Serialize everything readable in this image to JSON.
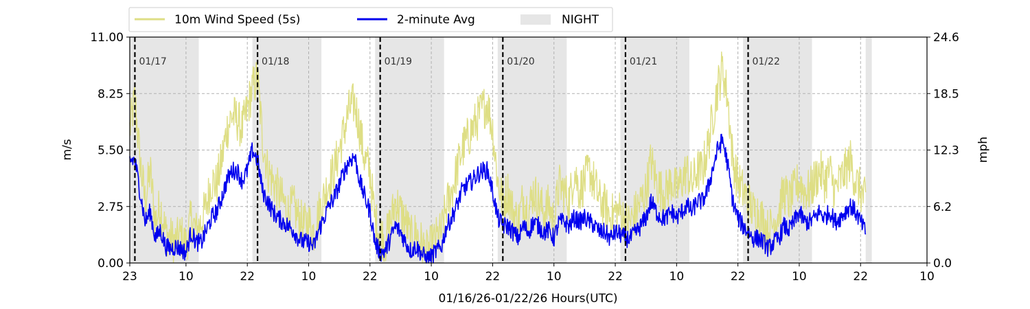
{
  "chart_data": {
    "type": "line",
    "xlabel": "01/16/26-01/22/26  Hours(UTC)",
    "ylabel_left": "m/s",
    "ylabel_right": "mph",
    "ylim": [
      0,
      11
    ],
    "y_ticks": [
      "0.00",
      "2.75",
      "5.50",
      "8.25",
      "11.00"
    ],
    "y_ticks_right": [
      "0.0",
      "6.2",
      "12.3",
      "18.5",
      "24.6"
    ],
    "x_range_hours": [
      0,
      156
    ],
    "x_ticks": [
      {
        "h": 0,
        "label": "23"
      },
      {
        "h": 11,
        "label": "10"
      },
      {
        "h": 23,
        "label": "22"
      },
      {
        "h": 35,
        "label": "10"
      },
      {
        "h": 47,
        "label": "22"
      },
      {
        "h": 59,
        "label": "10"
      },
      {
        "h": 71,
        "label": "22"
      },
      {
        "h": 83,
        "label": "10"
      },
      {
        "h": 95,
        "label": "22"
      },
      {
        "h": 107,
        "label": "10"
      },
      {
        "h": 119,
        "label": "22"
      },
      {
        "h": 131,
        "label": "10"
      },
      {
        "h": 143,
        "label": "22"
      },
      {
        "h": 156,
        "label": "10"
      }
    ],
    "grid": "dashed",
    "legend_position": "top-left, above plot",
    "legend": [
      "10m Wind Speed (5s)",
      "2-minute Avg",
      "NIGHT"
    ],
    "date_markers": [
      {
        "h": 1,
        "label": "01/17"
      },
      {
        "h": 25,
        "label": "01/18"
      },
      {
        "h": 49,
        "label": "01/19"
      },
      {
        "h": 73,
        "label": "01/20"
      },
      {
        "h": 97,
        "label": "01/21"
      },
      {
        "h": 121,
        "label": "01/22"
      }
    ],
    "night_spans": [
      [
        0,
        13.5
      ],
      [
        24,
        37.5
      ],
      [
        48,
        61.5
      ],
      [
        72,
        85.5
      ],
      [
        96,
        109.5
      ],
      [
        120,
        133.5
      ],
      [
        144,
        145.2
      ]
    ],
    "series": [
      {
        "name": "10m Wind Speed (5s)",
        "color": "#dede85",
        "x": [
          0,
          1,
          2,
          3,
          4,
          5,
          6,
          7,
          8,
          9,
          10,
          11,
          12,
          13,
          14,
          15,
          16,
          17,
          18,
          19,
          20,
          21,
          22,
          23,
          24,
          25,
          26,
          27,
          28,
          29,
          30,
          31,
          32,
          33,
          34,
          35,
          36,
          37,
          38,
          39,
          40,
          41,
          42,
          43,
          44,
          45,
          46,
          47,
          48,
          49,
          50,
          51,
          52,
          53,
          54,
          55,
          56,
          57,
          58,
          59,
          60,
          61,
          62,
          63,
          64,
          65,
          66,
          67,
          68,
          69,
          70,
          71,
          72,
          73,
          74,
          75,
          76,
          77,
          78,
          79,
          80,
          81,
          82,
          83,
          84,
          85,
          86,
          87,
          88,
          89,
          90,
          91,
          92,
          93,
          94,
          95,
          96,
          97,
          98,
          99,
          100,
          101,
          102,
          103,
          104,
          105,
          106,
          107,
          108,
          109,
          110,
          111,
          112,
          113,
          114,
          115,
          116,
          117,
          118,
          119,
          120,
          121,
          122,
          123,
          124,
          125,
          126,
          127,
          128,
          129,
          130,
          131,
          132,
          133,
          134,
          135,
          136,
          137,
          138,
          139,
          140,
          141,
          142,
          143,
          144
        ],
        "y": [
          6.5,
          8.0,
          5.0,
          3.0,
          4.5,
          2.0,
          2.8,
          1.5,
          1.2,
          1.0,
          1.4,
          0.8,
          2.2,
          1.5,
          2.0,
          2.8,
          4.0,
          3.8,
          5.0,
          6.5,
          7.2,
          7.0,
          6.5,
          7.5,
          8.5,
          9.0,
          6.0,
          4.5,
          4.0,
          3.5,
          3.0,
          2.5,
          2.8,
          2.2,
          1.8,
          2.0,
          1.5,
          2.5,
          3.2,
          4.0,
          4.5,
          5.5,
          6.5,
          7.5,
          7.8,
          6.5,
          5.0,
          4.5,
          2.0,
          1.5,
          1.0,
          2.0,
          3.0,
          2.5,
          2.0,
          1.2,
          1.5,
          1.0,
          0.5,
          0.8,
          1.2,
          1.5,
          2.8,
          3.5,
          4.5,
          5.5,
          6.0,
          6.5,
          7.0,
          7.5,
          7.8,
          6.5,
          4.0,
          3.0,
          3.5,
          2.5,
          2.0,
          3.2,
          2.5,
          3.5,
          3.0,
          2.5,
          2.8,
          2.0,
          3.8,
          3.5,
          3.0,
          4.5,
          3.5,
          4.0,
          4.5,
          3.8,
          3.0,
          2.8,
          2.2,
          2.5,
          2.5,
          2.0,
          2.0,
          2.5,
          3.0,
          3.5,
          5.0,
          4.0,
          3.5,
          3.5,
          4.0,
          3.5,
          4.0,
          4.5,
          3.8,
          4.5,
          4.5,
          5.5,
          7.0,
          8.5,
          9.5,
          8.0,
          5.0,
          4.0,
          3.5,
          3.0,
          2.5,
          2.5,
          2.0,
          1.5,
          2.0,
          2.5,
          3.5,
          3.0,
          3.5,
          4.0,
          3.5,
          3.5,
          4.0,
          4.5,
          4.0,
          4.5,
          3.5,
          4.0,
          4.5,
          5.0,
          4.0,
          3.5,
          3.0
        ],
        "jitter": 1.1
      },
      {
        "name": "2-minute Avg",
        "color": "#0000ee",
        "x": [
          0,
          1,
          2,
          3,
          4,
          5,
          6,
          7,
          8,
          9,
          10,
          11,
          12,
          13,
          14,
          15,
          16,
          17,
          18,
          19,
          20,
          21,
          22,
          23,
          24,
          25,
          26,
          27,
          28,
          29,
          30,
          31,
          32,
          33,
          34,
          35,
          36,
          37,
          38,
          39,
          40,
          41,
          42,
          43,
          44,
          45,
          46,
          47,
          48,
          49,
          50,
          51,
          52,
          53,
          54,
          55,
          56,
          57,
          58,
          59,
          60,
          61,
          62,
          63,
          64,
          65,
          66,
          67,
          68,
          69,
          70,
          71,
          72,
          73,
          74,
          75,
          76,
          77,
          78,
          79,
          80,
          81,
          82,
          83,
          84,
          85,
          86,
          87,
          88,
          89,
          90,
          91,
          92,
          93,
          94,
          95,
          96,
          97,
          98,
          99,
          100,
          101,
          102,
          103,
          104,
          105,
          106,
          107,
          108,
          109,
          110,
          111,
          112,
          113,
          114,
          115,
          116,
          117,
          118,
          119,
          120,
          121,
          122,
          123,
          124,
          125,
          126,
          127,
          128,
          129,
          130,
          131,
          132,
          133,
          134,
          135,
          136,
          137,
          138,
          139,
          140,
          141,
          142,
          143,
          144
        ],
        "y": [
          5.0,
          5.0,
          3.5,
          2.0,
          2.5,
          1.2,
          1.6,
          0.8,
          0.7,
          0.8,
          0.7,
          0.5,
          1.5,
          1.0,
          1.0,
          1.6,
          2.2,
          2.5,
          3.2,
          4.0,
          4.5,
          4.5,
          4.0,
          4.5,
          5.5,
          5.0,
          3.5,
          3.0,
          2.5,
          2.2,
          2.0,
          1.8,
          1.6,
          1.2,
          1.0,
          1.0,
          0.8,
          1.6,
          2.2,
          2.8,
          3.2,
          3.8,
          4.5,
          5.0,
          5.2,
          4.0,
          3.2,
          2.5,
          1.0,
          0.5,
          0.6,
          1.2,
          1.8,
          1.5,
          1.0,
          0.6,
          0.8,
          0.5,
          0.2,
          0.3,
          0.6,
          0.8,
          1.8,
          2.2,
          2.8,
          3.5,
          3.8,
          4.0,
          4.3,
          4.5,
          4.5,
          3.5,
          2.2,
          1.8,
          1.8,
          1.5,
          1.2,
          1.8,
          1.5,
          2.0,
          1.8,
          1.5,
          1.6,
          1.2,
          2.0,
          2.0,
          1.8,
          2.2,
          2.0,
          2.2,
          2.0,
          1.8,
          1.5,
          1.5,
          1.2,
          1.5,
          1.4,
          1.2,
          1.2,
          1.5,
          1.8,
          2.2,
          3.0,
          2.5,
          2.2,
          2.2,
          2.5,
          2.2,
          2.5,
          2.8,
          2.5,
          3.0,
          3.0,
          3.5,
          4.5,
          5.5,
          6.0,
          4.8,
          3.0,
          2.2,
          1.8,
          1.5,
          1.2,
          1.2,
          1.0,
          0.7,
          1.0,
          1.2,
          1.8,
          1.6,
          2.0,
          2.5,
          2.0,
          2.0,
          2.2,
          2.5,
          2.2,
          2.5,
          2.0,
          2.2,
          2.5,
          2.8,
          2.5,
          2.0,
          1.5
        ],
        "jitter": 0.45
      }
    ]
  }
}
